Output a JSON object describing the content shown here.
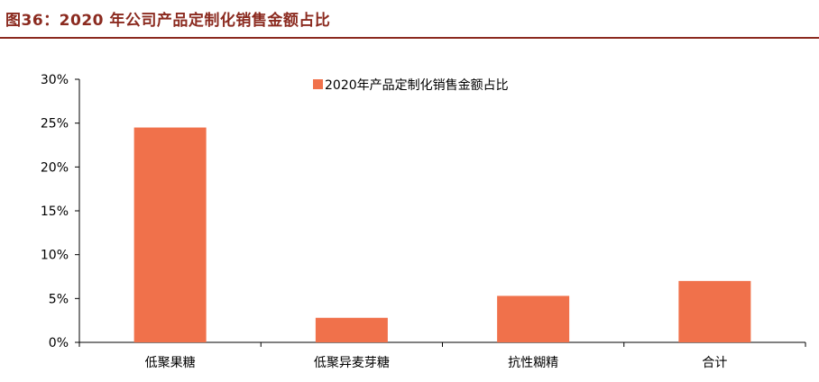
{
  "figure_title": "图36：2020 年公司产品定制化销售金额占比",
  "colors": {
    "bar": "#f0714b",
    "axis": "#000000",
    "title": "#8b2a1f"
  },
  "chart_data": {
    "type": "bar",
    "categories": [
      "低聚果糖",
      "低聚异麦芽糖",
      "抗性糊精",
      "合计"
    ],
    "series": [
      {
        "name": "2020年产品定制化销售金额占比",
        "values": [
          24.5,
          2.8,
          5.3,
          7.0
        ]
      }
    ],
    "ylim": [
      0,
      30
    ],
    "yticks": [
      0,
      5,
      10,
      15,
      20,
      25,
      30
    ],
    "ytick_labels": [
      "0%",
      "5%",
      "10%",
      "15%",
      "20%",
      "25%",
      "30%"
    ],
    "unit": "%",
    "grid": false,
    "legend": "top"
  }
}
